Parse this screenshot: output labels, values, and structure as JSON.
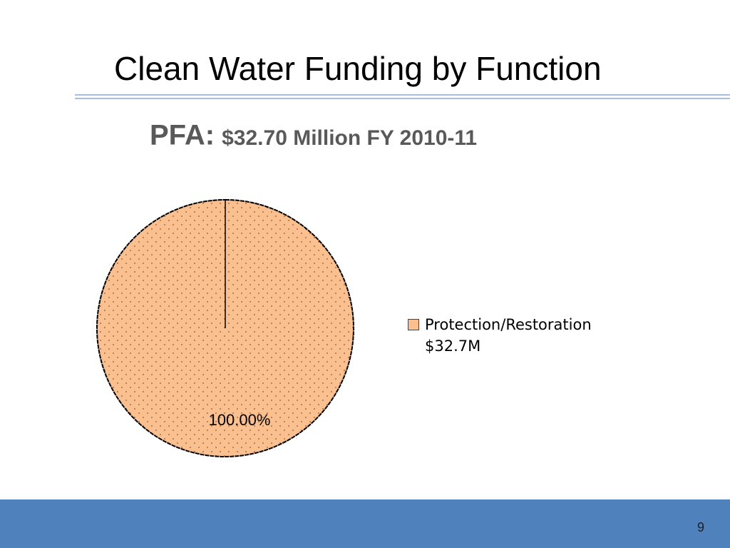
{
  "slide_title": "Clean Water Funding by Function",
  "page_number": "9",
  "chart_data": {
    "type": "pie",
    "title": "PFA:",
    "subtitle": "$32.70 Million FY 2010-11",
    "categories": [
      "Protection/Restoration $32.7M"
    ],
    "values": [
      100
    ],
    "value_labels": [
      "100.00%"
    ],
    "colors": [
      "#fac090"
    ]
  }
}
